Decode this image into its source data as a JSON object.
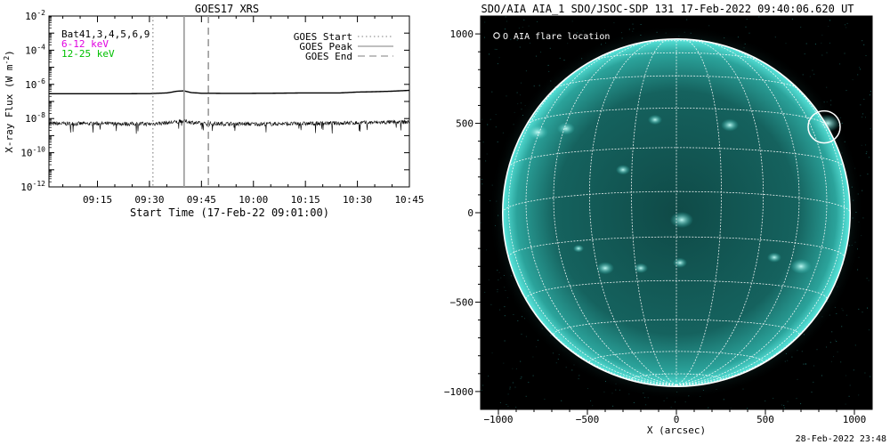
{
  "chart_data": [
    {
      "type": "line",
      "title": "GOES17 XRS",
      "xlabel": "Start Time (17-Feb-22 09:01:00)",
      "ylabel": "X-ray Flux (W m",
      "ylabel_sup": "-2",
      "ylabel_close": ")",
      "log_y": true,
      "ylim_exponents": [
        -12,
        -2
      ],
      "yticks": [
        {
          "exp": -2,
          "label": "-2"
        },
        {
          "exp": -4,
          "label": "-4"
        },
        {
          "exp": -6,
          "label": "-6"
        },
        {
          "exp": -8,
          "label": "-8"
        },
        {
          "exp": -10,
          "label": "-10"
        },
        {
          "exp": -12,
          "label": "-12"
        }
      ],
      "xlim_minutes": [
        541,
        645
      ],
      "xticks": [
        {
          "t": 555,
          "label": "09:15"
        },
        {
          "t": 570,
          "label": "09:30"
        },
        {
          "t": 585,
          "label": "09:45"
        },
        {
          "t": 600,
          "label": "10:00"
        },
        {
          "t": 615,
          "label": "10:15"
        },
        {
          "t": 630,
          "label": "10:30"
        },
        {
          "t": 645,
          "label": "10:45"
        }
      ],
      "band_labels": [
        {
          "text": "Bat41,3,4,5,6,9",
          "color": "#000000"
        },
        {
          "text": "6-12 keV",
          "color": "#e000e0"
        },
        {
          "text": "12-25 keV",
          "color": "#00c000"
        }
      ],
      "legend_placement": "top-right",
      "legend": [
        {
          "name": "GOES Start",
          "style": "dotted"
        },
        {
          "name": "GOES Peak",
          "style": "solid"
        },
        {
          "name": "GOES End",
          "style": "dashed"
        }
      ],
      "markers": {
        "goes_start": 571,
        "goes_peak": 580,
        "goes_end": 587
      },
      "series": [
        {
          "name": "long channel",
          "x": [
            541,
            560,
            570,
            575,
            578,
            580,
            582,
            585,
            595,
            605,
            615,
            625,
            630,
            635,
            640,
            645
          ],
          "log10_y": [
            -6.55,
            -6.55,
            -6.54,
            -6.5,
            -6.4,
            -6.38,
            -6.48,
            -6.52,
            -6.53,
            -6.52,
            -6.5,
            -6.5,
            -6.45,
            -6.43,
            -6.4,
            -6.35
          ]
        },
        {
          "name": "short channel",
          "x": [
            541,
            560,
            570,
            575,
            578,
            580,
            585,
            600,
            615,
            630,
            645
          ],
          "log10_y": [
            -8.3,
            -8.3,
            -8.32,
            -8.25,
            -8.2,
            -8.15,
            -8.3,
            -8.32,
            -8.3,
            -8.25,
            -8.2
          ],
          "noise": 0.12
        }
      ]
    },
    {
      "type": "image",
      "title": "SDO/AIA AIA_1 SDO/JSOC-SDP 131 17-Feb-2022 09:40:06.620 UT",
      "xlabel": "X (arcsec)",
      "ylabel": "",
      "xlim": [
        -1100,
        1100
      ],
      "ylim": [
        -1100,
        1100
      ],
      "xticks": [
        {
          "v": -1000,
          "label": "−1000"
        },
        {
          "v": -500,
          "label": "−500"
        },
        {
          "v": 0,
          "label": "0"
        },
        {
          "v": 500,
          "label": "500"
        },
        {
          "v": 1000,
          "label": "1000"
        }
      ],
      "yticks": [
        {
          "v": 1000,
          "label": "1000"
        },
        {
          "v": 500,
          "label": "500"
        },
        {
          "v": 0,
          "label": "0"
        },
        {
          "v": -500,
          "label": "−500"
        },
        {
          "v": -1000,
          "label": "−1000"
        }
      ],
      "solar_radius_arcsec": 976,
      "flare_location": {
        "x": 830,
        "y": 480,
        "radius": 90
      },
      "legend_text": "O AIA flare location",
      "footer_text": "28-Feb-2022 23:48",
      "colors": {
        "disk": "#2bbfb6",
        "disk_edge": "#59e6dc",
        "background": "#000000"
      }
    }
  ]
}
